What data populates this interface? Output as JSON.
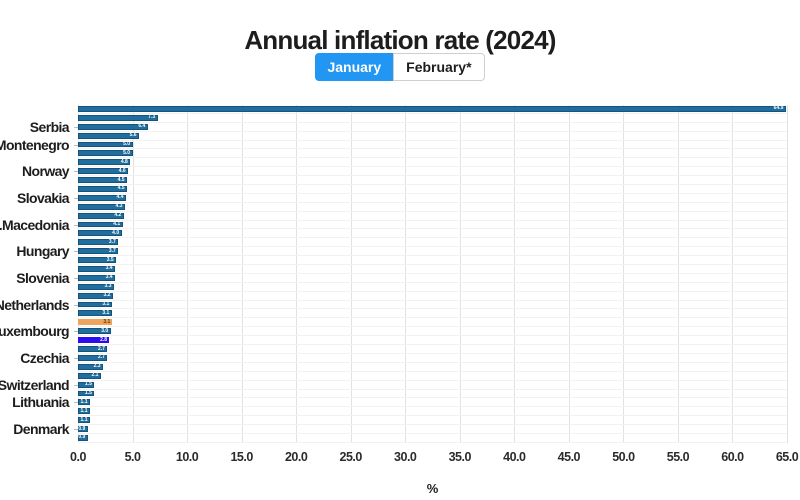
{
  "title": "Annual inflation rate (2024)",
  "tabs": [
    {
      "label": "January",
      "active": true
    },
    {
      "label": "February*",
      "active": false
    }
  ],
  "colors": {
    "tab_active_bg": "#2196f3",
    "tab_active_text": "#ffffff"
  },
  "chart_data": {
    "type": "bar",
    "orientation": "horizontal",
    "title": "Annual inflation rate (2024)",
    "xlabel": "%",
    "ylabel": "",
    "xlim": [
      0,
      65
    ],
    "grid": "vertical",
    "legend": false,
    "x_ticks": [
      "0.0",
      "5.0",
      "10.0",
      "15.0",
      "20.0",
      "25.0",
      "30.0",
      "35.0",
      "40.0",
      "45.0",
      "50.0",
      "55.0",
      "60.0",
      "65.0"
    ],
    "colors": {
      "bar_default": "#1f6e9d",
      "bar_border": "#14547c",
      "highlight_orange": "#efa45d",
      "highlight_blue": "#2b0df0",
      "grid": "#e2e2e2"
    },
    "bars": [
      {
        "country": "",
        "value": 64.9
      },
      {
        "country": "",
        "value": 7.3
      },
      {
        "country": "Serbia",
        "value": 6.4
      },
      {
        "country": "",
        "value": 5.6
      },
      {
        "country": "Montenegro",
        "value": 5.0
      },
      {
        "country": "",
        "value": 5.0
      },
      {
        "country": "",
        "value": 4.8
      },
      {
        "country": "Norway",
        "value": 4.6
      },
      {
        "country": "",
        "value": 4.5
      },
      {
        "country": "",
        "value": 4.5
      },
      {
        "country": "Slovakia",
        "value": 4.4
      },
      {
        "country": "",
        "value": 4.3
      },
      {
        "country": "",
        "value": 4.2
      },
      {
        "country": "N.Macedonia",
        "value": 4.1
      },
      {
        "country": "",
        "value": 4.0
      },
      {
        "country": "",
        "value": 3.7
      },
      {
        "country": "Hungary",
        "value": 3.7
      },
      {
        "country": "",
        "value": 3.5
      },
      {
        "country": "",
        "value": 3.4
      },
      {
        "country": "Slovenia",
        "value": 3.4
      },
      {
        "country": "",
        "value": 3.3
      },
      {
        "country": "",
        "value": 3.2
      },
      {
        "country": "Netherlands",
        "value": 3.1
      },
      {
        "country": "",
        "value": 3.1
      },
      {
        "country": "",
        "value": 3.1,
        "color": "orange"
      },
      {
        "country": "Luxembourg",
        "value": 3.0
      },
      {
        "country": "",
        "value": 2.8,
        "color": "blue"
      },
      {
        "country": "",
        "value": 2.7
      },
      {
        "country": "Czechia",
        "value": 2.7
      },
      {
        "country": "",
        "value": 2.3
      },
      {
        "country": "",
        "value": 2.1
      },
      {
        "country": "Switzerland",
        "value": 1.5
      },
      {
        "country": "",
        "value": 1.5
      },
      {
        "country": "Lithuania",
        "value": 1.1
      },
      {
        "country": "",
        "value": 1.1
      },
      {
        "country": "",
        "value": 1.1
      },
      {
        "country": "Denmark",
        "value": 0.9
      },
      {
        "country": "",
        "value": 0.9
      }
    ]
  }
}
